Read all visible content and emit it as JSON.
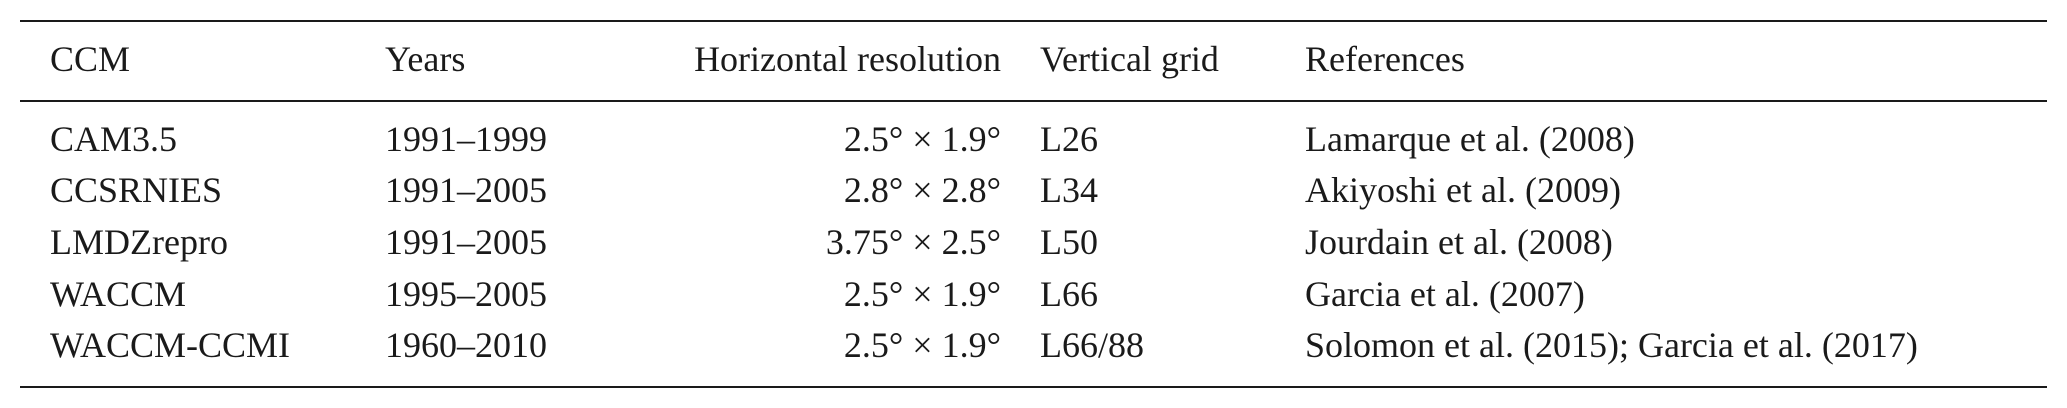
{
  "table": {
    "columns": [
      "CCM",
      "Years",
      "Horizontal resolution",
      "Vertical grid",
      "References"
    ],
    "rows": [
      {
        "ccm": "CAM3.5",
        "years": "1991–1999",
        "resolution": "2.5° × 1.9°",
        "grid": "L26",
        "references": "Lamarque et al. (2008)"
      },
      {
        "ccm": "CCSRNIES",
        "years": "1991–2005",
        "resolution": "2.8° × 2.8°",
        "grid": "L34",
        "references": "Akiyoshi et al. (2009)"
      },
      {
        "ccm": "LMDZrepro",
        "years": "1991–2005",
        "resolution": "3.75° × 2.5°",
        "grid": "L50",
        "references": "Jourdain et al. (2008)"
      },
      {
        "ccm": "WACCM",
        "years": "1995–2005",
        "resolution": "2.5° × 1.9°",
        "grid": "L66",
        "references": "Garcia et al. (2007)"
      },
      {
        "ccm": "WACCM-CCMI",
        "years": "1960–2010",
        "resolution": "2.5° × 1.9°",
        "grid": "L66/88",
        "references": "Solomon et al. (2015); Garcia et al. (2017)"
      }
    ]
  }
}
